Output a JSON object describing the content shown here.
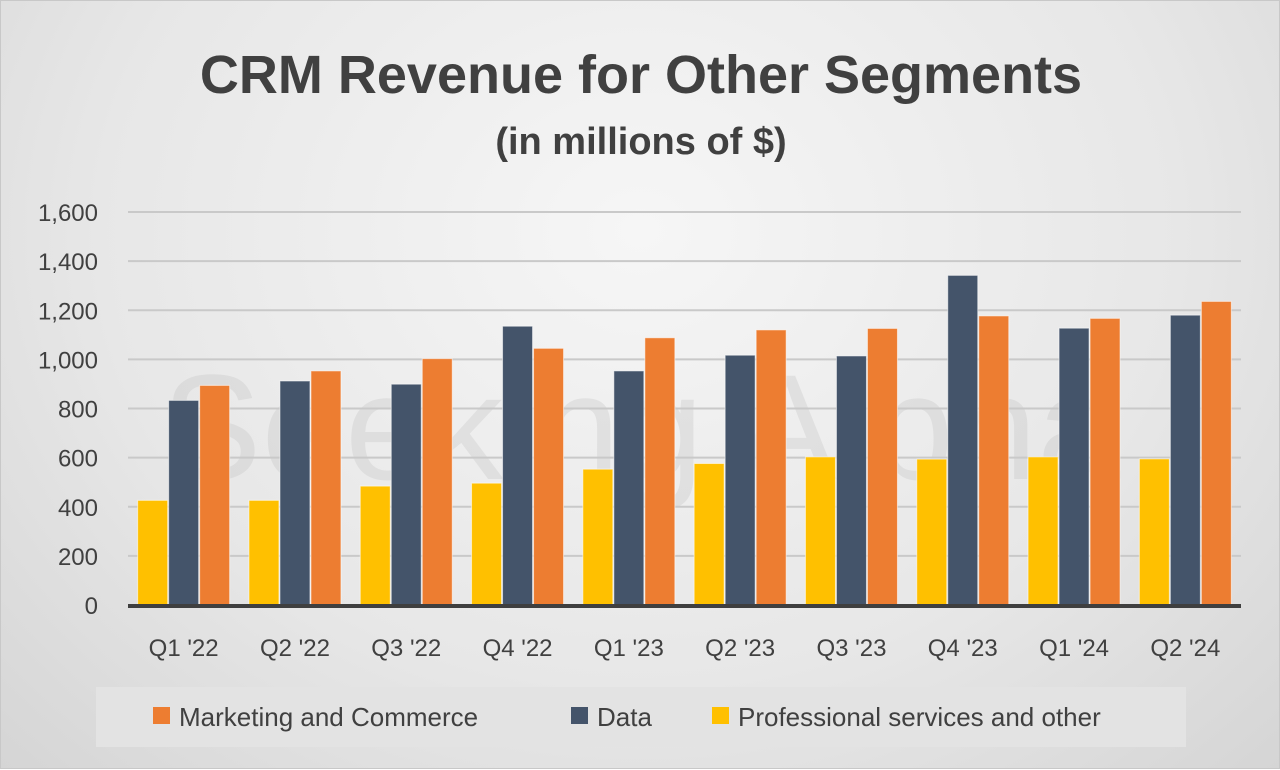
{
  "chart_data": {
    "type": "bar",
    "title": "CRM Revenue for Other Segments",
    "subtitle": "(in millions of $)",
    "watermark": "Seeking Alpha",
    "categories": [
      "Q1 '22",
      "Q2 '22",
      "Q3 '22",
      "Q4 '22",
      "Q1 '23",
      "Q2 '23",
      "Q3 '23",
      "Q4 '23",
      "Q1 '24",
      "Q2 '24"
    ],
    "series": [
      {
        "name": "Professional services and other",
        "color": "#FFC000",
        "values": [
          426,
          426,
          484,
          496,
          553,
          576,
          603,
          594,
          603,
          595
        ]
      },
      {
        "name": "Data",
        "color": "#44546A",
        "values": [
          833,
          912,
          899,
          1135,
          953,
          1017,
          1014,
          1342,
          1127,
          1180
        ]
      },
      {
        "name": "Marketing and Commerce",
        "color": "#ED7D31",
        "values": [
          894,
          953,
          1003,
          1045,
          1088,
          1120,
          1126,
          1177,
          1167,
          1236
        ]
      }
    ],
    "legend_order": [
      "Marketing and Commerce",
      "Data",
      "Professional services and other"
    ],
    "legend_position": "bottom",
    "ylim": [
      0,
      1600
    ],
    "yticks": [
      0,
      200,
      400,
      600,
      800,
      1000,
      1200,
      1400,
      1600
    ],
    "ytick_labels": [
      "0",
      "200",
      "400",
      "600",
      "800",
      "1,000",
      "1,200",
      "1,400",
      "1,600"
    ],
    "grid": true,
    "xlabel": "",
    "ylabel": ""
  }
}
